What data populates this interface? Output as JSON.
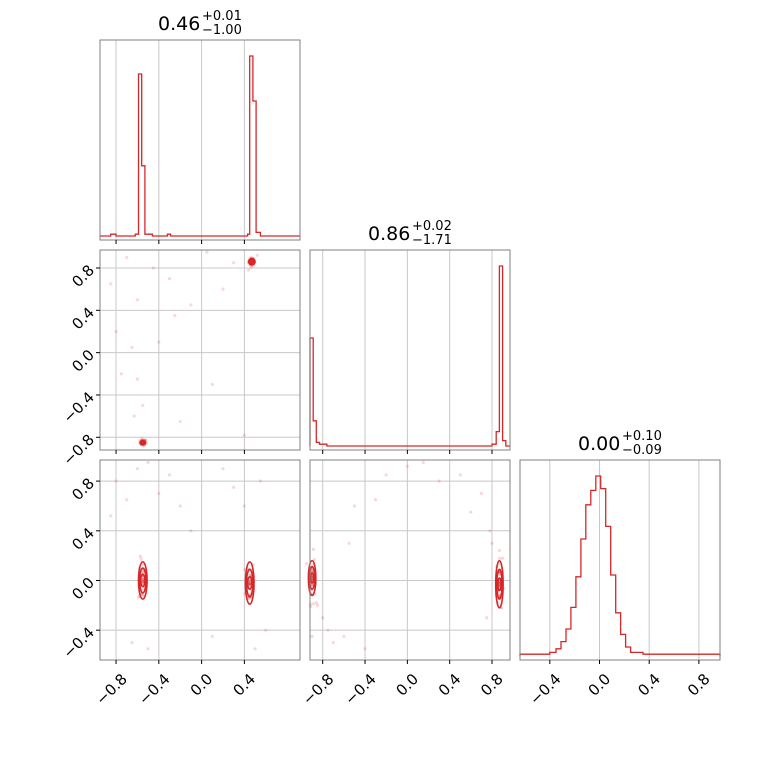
{
  "chart_data": {
    "type": "corner",
    "colors": {
      "series": "#d62728",
      "grid": "#c8c8c8",
      "frame": "#808080"
    },
    "grid": true,
    "titles": [
      {
        "value": "0.46",
        "plus": "+0.01",
        "minus": "−1.00"
      },
      {
        "value": "0.86",
        "plus": "+0.02",
        "minus": "−1.71"
      },
      {
        "value": "0.00",
        "plus": "+0.10",
        "minus": "−0.09"
      }
    ],
    "ranges": {
      "p0": [
        -0.95,
        0.92
      ],
      "p1": [
        -0.92,
        0.97
      ],
      "p2": [
        -0.64,
        0.97
      ]
    },
    "ticks": {
      "p0": [
        "−0.8",
        "−0.4",
        "0.0",
        "0.4"
      ],
      "p1": [
        "−0.8",
        "−0.4",
        "0.0",
        "0.4",
        "0.8"
      ],
      "p2": [
        "−0.4",
        "0.0",
        "0.4",
        "0.8"
      ]
    },
    "marginals": [
      {
        "param": "p0",
        "type": "histogram",
        "points": [
          [
            -0.95,
            0
          ],
          [
            -0.85,
            0
          ],
          [
            -0.85,
            0.01
          ],
          [
            -0.8,
            0.01
          ],
          [
            -0.8,
            0
          ],
          [
            -0.62,
            0
          ],
          [
            -0.62,
            0.01
          ],
          [
            -0.59,
            0.01
          ],
          [
            -0.59,
            0.9
          ],
          [
            -0.56,
            0.9
          ],
          [
            -0.56,
            0.39
          ],
          [
            -0.53,
            0.39
          ],
          [
            -0.53,
            0.01
          ],
          [
            -0.46,
            0.01
          ],
          [
            -0.46,
            0
          ],
          [
            -0.32,
            0
          ],
          [
            -0.32,
            0.01
          ],
          [
            -0.29,
            0.01
          ],
          [
            -0.29,
            0
          ],
          [
            0.43,
            0
          ],
          [
            0.43,
            0.01
          ],
          [
            0.45,
            0.01
          ],
          [
            0.45,
            1.0
          ],
          [
            0.48,
            1.0
          ],
          [
            0.48,
            0.75
          ],
          [
            0.51,
            0.75
          ],
          [
            0.51,
            0.02
          ],
          [
            0.55,
            0.02
          ],
          [
            0.55,
            0
          ],
          [
            0.92,
            0
          ]
        ]
      },
      {
        "param": "p1",
        "type": "histogram",
        "points": [
          [
            -0.92,
            0
          ],
          [
            -0.92,
            0.6
          ],
          [
            -0.89,
            0.6
          ],
          [
            -0.89,
            0.14
          ],
          [
            -0.86,
            0.14
          ],
          [
            -0.86,
            0.02
          ],
          [
            -0.83,
            0.02
          ],
          [
            -0.83,
            0.01
          ],
          [
            -0.76,
            0.01
          ],
          [
            -0.76,
            0
          ],
          [
            0.8,
            0
          ],
          [
            0.8,
            0.01
          ],
          [
            0.84,
            0.01
          ],
          [
            0.84,
            0.08
          ],
          [
            0.87,
            0.08
          ],
          [
            0.87,
            1.0
          ],
          [
            0.9,
            1.0
          ],
          [
            0.9,
            0.03
          ],
          [
            0.93,
            0.03
          ],
          [
            0.93,
            0
          ],
          [
            0.97,
            0
          ]
        ]
      },
      {
        "param": "p2",
        "type": "histogram",
        "points": [
          [
            -0.64,
            0
          ],
          [
            -0.64,
            0.01
          ],
          [
            -0.4,
            0.01
          ],
          [
            -0.4,
            0.02
          ],
          [
            -0.35,
            0.02
          ],
          [
            -0.35,
            0.04
          ],
          [
            -0.31,
            0.04
          ],
          [
            -0.31,
            0.08
          ],
          [
            -0.27,
            0.08
          ],
          [
            -0.27,
            0.15
          ],
          [
            -0.23,
            0.15
          ],
          [
            -0.23,
            0.27
          ],
          [
            -0.19,
            0.27
          ],
          [
            -0.19,
            0.44
          ],
          [
            -0.15,
            0.44
          ],
          [
            -0.15,
            0.65
          ],
          [
            -0.11,
            0.65
          ],
          [
            -0.11,
            0.84
          ],
          [
            -0.07,
            0.84
          ],
          [
            -0.07,
            0.92
          ],
          [
            -0.03,
            0.92
          ],
          [
            -0.03,
            1.0
          ],
          [
            0.01,
            1.0
          ],
          [
            0.01,
            0.93
          ],
          [
            0.05,
            0.93
          ],
          [
            0.05,
            0.72
          ],
          [
            0.09,
            0.72
          ],
          [
            0.09,
            0.45
          ],
          [
            0.13,
            0.45
          ],
          [
            0.13,
            0.24
          ],
          [
            0.17,
            0.24
          ],
          [
            0.17,
            0.12
          ],
          [
            0.21,
            0.12
          ],
          [
            0.21,
            0.05
          ],
          [
            0.25,
            0.05
          ],
          [
            0.25,
            0.02
          ],
          [
            0.35,
            0.02
          ],
          [
            0.35,
            0.01
          ],
          [
            0.97,
            0.01
          ],
          [
            0.97,
            0
          ]
        ]
      }
    ],
    "joint": [
      {
        "x": "p0",
        "y": "p1",
        "clusters": [
          {
            "cx": 0.47,
            "cy": 0.86,
            "sx": 0.015,
            "sy": 0.02,
            "contours": [
              [
                0.03,
                0.03
              ],
              [
                0.02,
                0.02
              ]
            ]
          },
          {
            "cx": -0.55,
            "cy": -0.85,
            "sx": 0.015,
            "sy": 0.015,
            "contours": [
              [
                0.025,
                0.02
              ],
              [
                0.015,
                0.012
              ]
            ]
          }
        ],
        "outliers": [
          [
            -0.85,
            0.65
          ],
          [
            -0.8,
            0.2
          ],
          [
            -0.75,
            -0.2
          ],
          [
            -0.7,
            0.9
          ],
          [
            -0.63,
            -0.6
          ],
          [
            -0.6,
            0.5
          ],
          [
            -0.55,
            -0.5
          ],
          [
            -0.45,
            0.8
          ],
          [
            -0.4,
            0.1
          ],
          [
            -0.3,
            0.7
          ],
          [
            -0.2,
            -0.65
          ],
          [
            -0.1,
            0.45
          ],
          [
            0.05,
            0.95
          ],
          [
            0.2,
            0.6
          ],
          [
            0.3,
            0.85
          ],
          [
            0.4,
            -0.78
          ],
          [
            0.52,
            0.92
          ],
          [
            0.44,
            0.78
          ],
          [
            -0.6,
            -0.25
          ],
          [
            -0.65,
            0.05
          ],
          [
            0.1,
            -0.3
          ],
          [
            -0.25,
            0.35
          ]
        ]
      },
      {
        "x": "p0",
        "y": "p2",
        "clusters": [
          {
            "cx": -0.55,
            "cy": 0.0,
            "sx": 0.02,
            "sy": 0.09,
            "contours": [
              [
                0.04,
                0.15
              ],
              [
                0.03,
                0.1
              ],
              [
                0.02,
                0.05
              ]
            ]
          },
          {
            "cx": 0.45,
            "cy": -0.02,
            "sx": 0.02,
            "sy": 0.1,
            "contours": [
              [
                0.04,
                0.17
              ],
              [
                0.03,
                0.11
              ],
              [
                0.02,
                0.05
              ]
            ]
          }
        ],
        "outliers": [
          [
            -0.85,
            0.52
          ],
          [
            -0.8,
            0.8
          ],
          [
            -0.7,
            0.65
          ],
          [
            -0.6,
            0.9
          ],
          [
            -0.5,
            0.95
          ],
          [
            -0.4,
            0.7
          ],
          [
            -0.3,
            0.85
          ],
          [
            -0.2,
            0.6
          ],
          [
            0.2,
            0.9
          ],
          [
            0.3,
            0.75
          ],
          [
            0.4,
            0.6
          ],
          [
            0.55,
            0.8
          ],
          [
            0.6,
            -0.4
          ],
          [
            -0.65,
            -0.5
          ],
          [
            0.1,
            -0.45
          ],
          [
            -0.1,
            0.4
          ],
          [
            0.5,
            -0.55
          ],
          [
            -0.5,
            -0.55
          ]
        ]
      },
      {
        "x": "p1",
        "y": "p2",
        "clusters": [
          {
            "cx": -0.9,
            "cy": 0.02,
            "sx": 0.015,
            "sy": 0.1,
            "contours": [
              [
                0.035,
                0.14
              ],
              [
                0.025,
                0.09
              ],
              [
                0.015,
                0.04
              ]
            ]
          },
          {
            "cx": 0.87,
            "cy": -0.03,
            "sx": 0.015,
            "sy": 0.12,
            "contours": [
              [
                0.035,
                0.19
              ],
              [
                0.025,
                0.12
              ],
              [
                0.015,
                0.05
              ]
            ]
          }
        ],
        "outliers": [
          [
            -0.85,
            -0.2
          ],
          [
            -0.8,
            -0.3
          ],
          [
            -0.75,
            -0.4
          ],
          [
            -0.7,
            -0.5
          ],
          [
            -0.6,
            -0.45
          ],
          [
            -0.5,
            0.6
          ],
          [
            -0.4,
            -0.55
          ],
          [
            -0.3,
            0.65
          ],
          [
            -0.2,
            0.85
          ],
          [
            0.0,
            0.92
          ],
          [
            0.15,
            0.95
          ],
          [
            0.3,
            0.8
          ],
          [
            0.5,
            0.85
          ],
          [
            0.7,
            0.7
          ],
          [
            0.78,
            0.4
          ],
          [
            0.8,
            0.3
          ],
          [
            0.75,
            -0.3
          ],
          [
            -0.9,
            -0.45
          ],
          [
            -0.55,
            0.3
          ],
          [
            0.6,
            0.55
          ]
        ]
      }
    ]
  }
}
